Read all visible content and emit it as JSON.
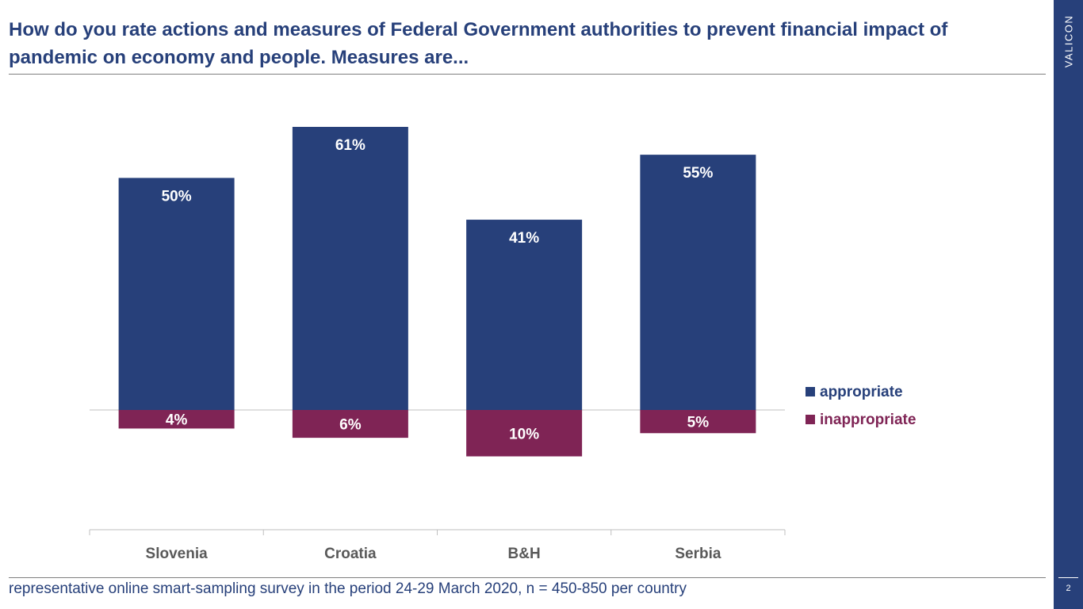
{
  "title": "How do you rate actions and measures of Federal Government authorities to prevent financial impact of pandemic on economy and people. Measures are...",
  "brand": "VALICON",
  "page_number": "2",
  "footnote": "representative online smart-sampling survey in the period 24-29 March 2020, n = 450-850 per country",
  "colors": {
    "accent": "#27407a",
    "appropriate": "#27407a",
    "inappropriate": "#7f2455",
    "axis": "#bfbfbf",
    "category_text": "#595959"
  },
  "chart_data": {
    "type": "bar",
    "categories": [
      "Slovenia",
      "Croatia",
      "B&H",
      "Serbia"
    ],
    "series": [
      {
        "name": "appropriate",
        "values": [
          50,
          61,
          41,
          55
        ],
        "labels": [
          "50%",
          "61%",
          "41%",
          "55%"
        ]
      },
      {
        "name": "inappropriate",
        "values": [
          -4,
          -6,
          -10,
          -5
        ],
        "labels": [
          "4%",
          "6%",
          "10%",
          "5%"
        ]
      }
    ],
    "ylim": [
      -20,
      70
    ],
    "grid": false,
    "legend_position": "right"
  }
}
